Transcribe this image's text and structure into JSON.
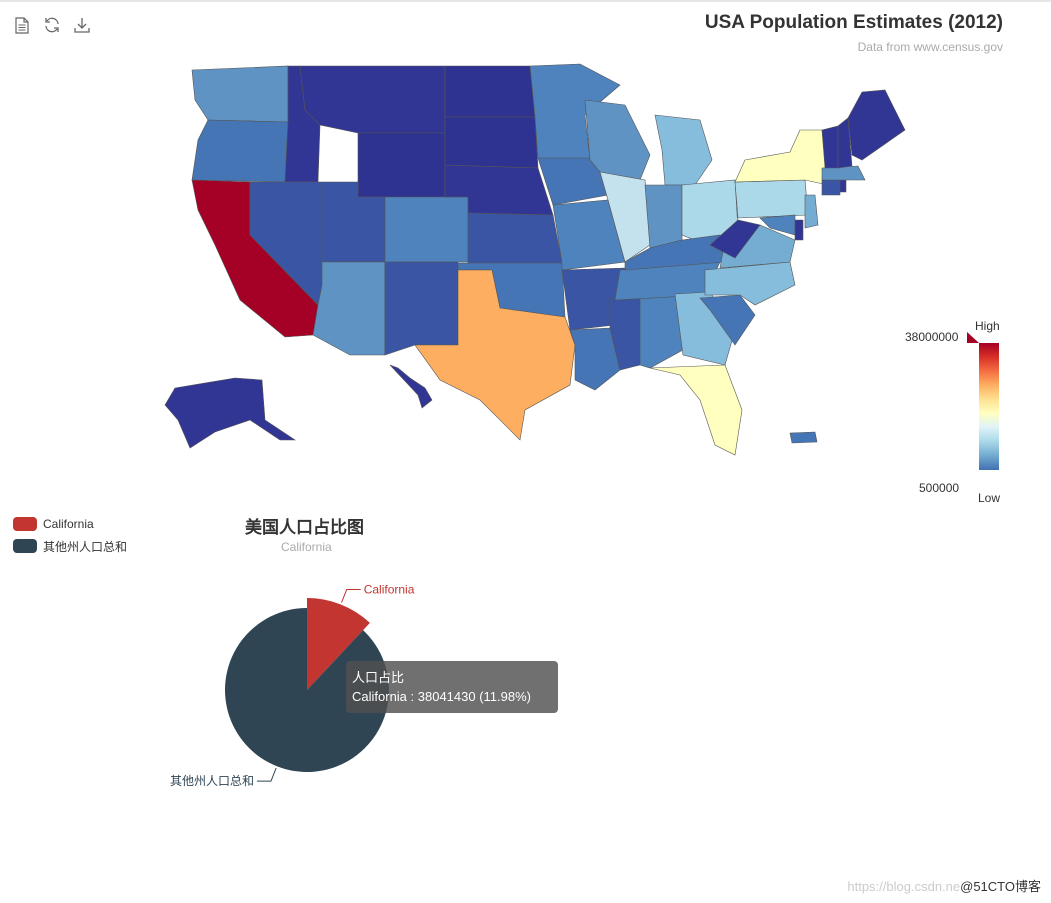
{
  "toolbar": {
    "items": [
      {
        "name": "data-view-icon"
      },
      {
        "name": "restore-icon"
      },
      {
        "name": "save-image-icon"
      }
    ]
  },
  "map_title": "USA Population Estimates (2012)",
  "map_subtitle": "Data from www.census.gov",
  "visual_map": {
    "max_value": "38000000",
    "min_value": "500000",
    "high_label": "High",
    "low_label": "Low",
    "colors": [
      "#313695",
      "#4575b4",
      "#74add1",
      "#abd9e9",
      "#e0f3f8",
      "#ffffbf",
      "#fee090",
      "#fdae61",
      "#f46d43",
      "#d73027",
      "#a50026"
    ]
  },
  "legend": [
    {
      "name": "California",
      "color": "#c23531"
    },
    {
      "name": "其他州人口总和",
      "color": "#2f4554"
    }
  ],
  "pie_title": "美国人口占比图",
  "pie_subtitle": "California",
  "tooltip": {
    "series": "人口占比",
    "text": "California : 38041430 (11.98%)"
  },
  "watermark": {
    "url": "https://blog.csdn.ne",
    "brand": "@51CTO博客"
  },
  "chart_data": [
    {
      "type": "map",
      "title": "USA Population Estimates (2012)",
      "subtitle": "Data from www.census.gov",
      "visual_map": {
        "min": 500000,
        "max": 38000000
      },
      "highlighted_regions": [
        {
          "name": "California",
          "approx_level": "max"
        },
        {
          "name": "Texas",
          "approx_level": "high"
        },
        {
          "name": "New York",
          "approx_level": "mid-high"
        },
        {
          "name": "Florida",
          "approx_level": "mid-high"
        }
      ]
    },
    {
      "type": "pie",
      "title": "美国人口占比图",
      "subtitle": "California",
      "series_name": "人口占比",
      "slices": [
        {
          "name": "California",
          "value": 38041430,
          "percent": 11.98,
          "color": "#c23531"
        },
        {
          "name": "其他州人口总和",
          "value": 279500000,
          "percent": 88.02,
          "color": "#2f4554"
        }
      ]
    }
  ]
}
